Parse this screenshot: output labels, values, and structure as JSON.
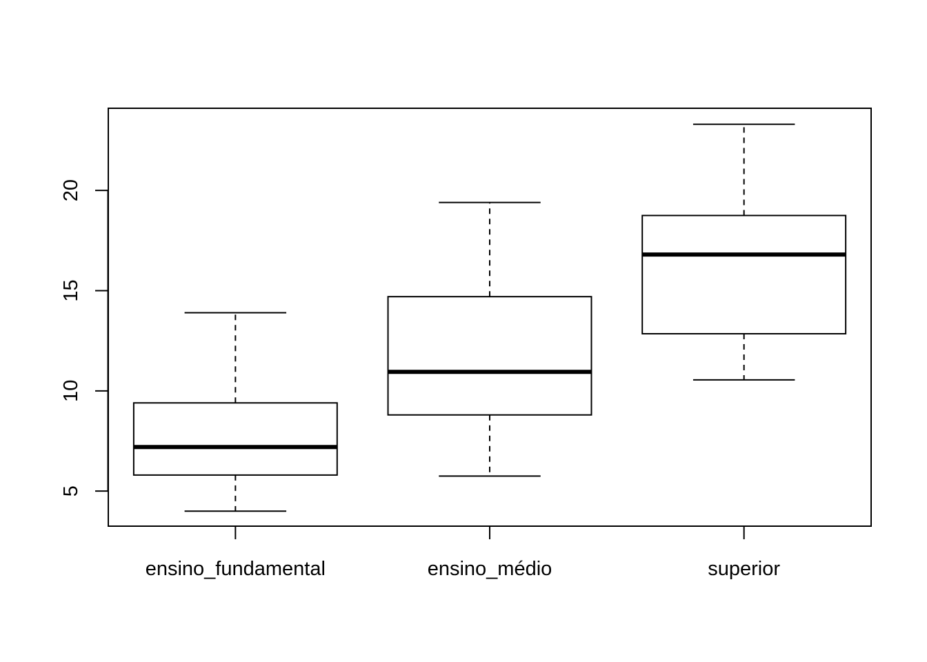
{
  "chart_data": {
    "type": "boxplot",
    "title": "",
    "xlabel": "",
    "ylabel": "",
    "categories": [
      "ensino_fundamental",
      "ensino_médio",
      "superior"
    ],
    "boxes": [
      {
        "category": "ensino_fundamental",
        "min": 4.0,
        "q1": 5.8,
        "median": 7.2,
        "q3": 9.4,
        "max": 13.9
      },
      {
        "category": "ensino_médio",
        "min": 5.75,
        "q1": 8.8,
        "median": 10.95,
        "q3": 14.7,
        "max": 19.4
      },
      {
        "category": "superior",
        "min": 10.55,
        "q1": 12.85,
        "median": 16.8,
        "q3": 18.75,
        "max": 23.3
      }
    ],
    "y_ticks": [
      5,
      10,
      15,
      20
    ],
    "ylim": [
      3.25,
      24.1
    ],
    "grid": false,
    "legend": "none"
  }
}
